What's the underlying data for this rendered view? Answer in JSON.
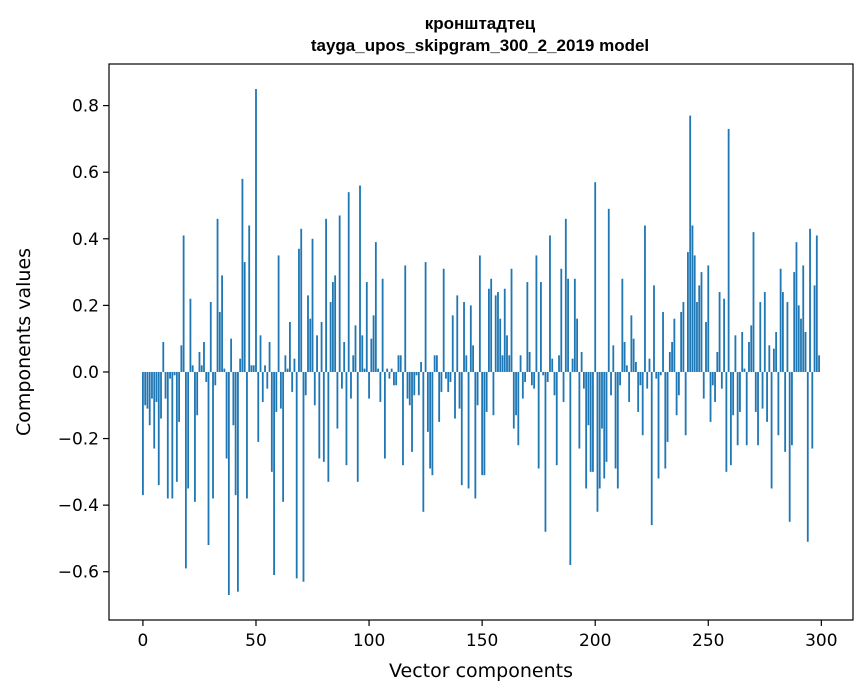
{
  "chart_data": {
    "type": "bar",
    "title": "кронштадтец",
    "subtitle": "tayga_upos_skipgram_300_2_2019 model",
    "xlabel": "Vector components",
    "ylabel": "Components values",
    "xlim": [
      -15,
      314
    ],
    "ylim": [
      -0.745,
      0.925
    ],
    "xticks": [
      0,
      50,
      100,
      150,
      200,
      250,
      300
    ],
    "xtick_labels": [
      "0",
      "50",
      "100",
      "150",
      "200",
      "250",
      "300"
    ],
    "yticks": [
      -0.6,
      -0.4,
      -0.2,
      0.0,
      0.2,
      0.4,
      0.6,
      0.8
    ],
    "ytick_labels": [
      "−0.6",
      "−0.4",
      "−0.2",
      "0.0",
      "0.2",
      "0.4",
      "0.6",
      "0.8"
    ],
    "grid": false,
    "bar_color": "#1f77b4",
    "series": [
      {
        "values": [
          -0.37,
          -0.1,
          -0.11,
          -0.16,
          -0.08,
          -0.23,
          -0.09,
          -0.34,
          -0.14,
          0.09,
          -0.08,
          -0.38,
          -0.02,
          -0.38,
          -0.01,
          -0.33,
          -0.15,
          0.08,
          0.41,
          -0.59,
          -0.35,
          0.22,
          0.02,
          -0.39,
          -0.13,
          0.06,
          0.02,
          0.09,
          -0.03,
          -0.52,
          0.21,
          -0.38,
          -0.04,
          0.46,
          0.18,
          0.29,
          0.01,
          -0.26,
          -0.67,
          0.1,
          -0.16,
          -0.37,
          -0.66,
          0.04,
          0.58,
          0.33,
          -0.38,
          0.44,
          0.02,
          0.02,
          0.85,
          -0.21,
          0.11,
          -0.09,
          0.02,
          -0.05,
          0.09,
          -0.3,
          -0.61,
          -0.12,
          0.35,
          -0.11,
          -0.39,
          0.05,
          0.01,
          0.15,
          -0.06,
          0.04,
          -0.62,
          0.37,
          0.43,
          -0.63,
          -0.07,
          0.23,
          0.16,
          0.4,
          -0.1,
          0.11,
          -0.26,
          0.15,
          -0.27,
          0.46,
          -0.33,
          0.21,
          0.27,
          0.29,
          -0.17,
          0.47,
          -0.05,
          0.09,
          -0.28,
          0.54,
          -0.08,
          0.05,
          0.14,
          -0.33,
          0.56,
          0.11,
          0.01,
          0.27,
          -0.08,
          0.1,
          0.17,
          0.39,
          0.01,
          -0.09,
          0.28,
          -0.26,
          0.01,
          -0.02,
          0.01,
          -0.04,
          -0.04,
          0.05,
          0.05,
          -0.28,
          0.32,
          -0.08,
          -0.1,
          -0.24,
          -0.07,
          -0.01,
          -0.07,
          0.03,
          -0.42,
          0.33,
          -0.18,
          -0.29,
          -0.31,
          0.05,
          0.05,
          -0.15,
          -0.06,
          0.31,
          -0.02,
          -0.06,
          -0.03,
          0.17,
          -0.14,
          0.23,
          -0.11,
          -0.34,
          0.21,
          0.05,
          -0.35,
          0.2,
          0.08,
          -0.38,
          -0.1,
          0.35,
          -0.31,
          -0.31,
          -0.12,
          0.25,
          0.28,
          -0.13,
          0.23,
          0.24,
          0.16,
          0.05,
          0.25,
          0.11,
          0.05,
          0.31,
          -0.17,
          -0.13,
          -0.22,
          0.05,
          -0.08,
          -0.03,
          0.27,
          0.06,
          -0.04,
          -0.05,
          0.35,
          -0.29,
          0.27,
          -0.01,
          -0.48,
          -0.03,
          0.41,
          0.04,
          -0.07,
          -0.28,
          0.05,
          0.31,
          -0.09,
          0.46,
          0.28,
          -0.58,
          0.04,
          0.28,
          0.16,
          -0.23,
          0.06,
          -0.05,
          -0.35,
          -0.16,
          -0.3,
          -0.3,
          0.57,
          -0.42,
          -0.35,
          -0.17,
          -0.32,
          -0.27,
          0.49,
          -0.07,
          0.08,
          -0.29,
          -0.35,
          -0.04,
          0.28,
          0.09,
          0.02,
          -0.09,
          0.17,
          0.1,
          0.03,
          -0.12,
          -0.04,
          -0.19,
          0.44,
          -0.05,
          0.04,
          -0.46,
          0.26,
          -0.02,
          -0.32,
          -0.01,
          0.18,
          -0.29,
          -0.21,
          0.06,
          0.09,
          0.16,
          -0.13,
          -0.07,
          0.18,
          0.21,
          -0.19,
          0.36,
          0.77,
          0.44,
          0.35,
          0.21,
          0.26,
          0.3,
          -0.08,
          0.15,
          0.32,
          -0.15,
          -0.04,
          -0.09,
          0.06,
          0.24,
          -0.05,
          0.22,
          -0.3,
          0.73,
          -0.28,
          -0.13,
          0.11,
          -0.22,
          -0.12,
          0.12,
          0.01,
          -0.22,
          0.09,
          0.14,
          0.42,
          -0.12,
          -0.22,
          0.21,
          -0.11,
          0.24,
          -0.15,
          0.08,
          -0.35,
          0.07,
          0.12,
          -0.19,
          0.31,
          0.24,
          -0.24,
          0.21,
          -0.45,
          -0.22,
          0.3,
          0.39,
          0.2,
          0.16,
          0.32,
          0.12,
          -0.51,
          0.43,
          -0.23,
          0.26,
          0.41,
          0.05
        ]
      }
    ]
  }
}
